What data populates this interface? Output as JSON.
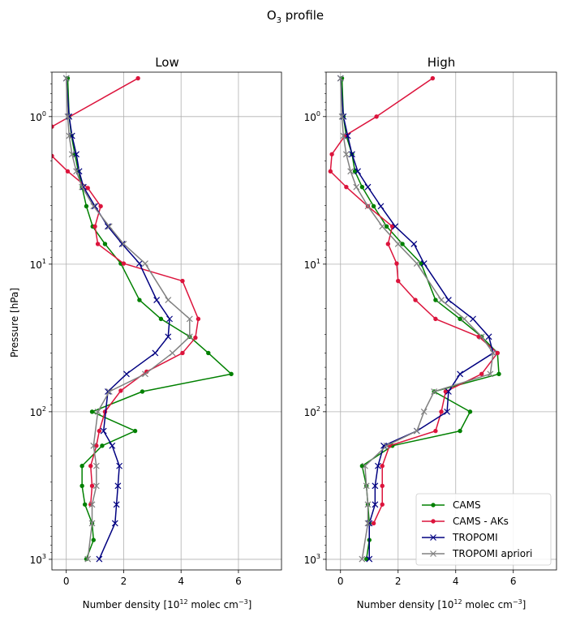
{
  "suptitle": "O",
  "suptitle_sub": "3",
  "suptitle_rest": " profile",
  "chart_data": [
    {
      "type": "line",
      "title": "Low",
      "ylabel": "Pressure [hPa]",
      "xlabel_pre": "Number density [10",
      "xlabel_exp1": "12",
      "xlabel_mid": " molec cm",
      "xlabel_exp2": "−3",
      "xlabel_post": "]",
      "xlim": [
        -0.5,
        7.5
      ],
      "ylim": [
        1180,
        0.5
      ],
      "yscale": "log",
      "grid": true,
      "xticks": [
        0,
        2,
        4,
        6
      ],
      "xtick_labels": [
        "0",
        "2",
        "4",
        "6"
      ],
      "yticks": [
        1,
        10,
        100,
        1000
      ],
      "ytick_labels": [
        "10^0",
        "10^1",
        "10^2",
        "10^3"
      ],
      "series": [
        {
          "name": "CAMS",
          "color": "#008000",
          "marker": "dot",
          "x": [
            0.05,
            0.1,
            0.18,
            0.3,
            0.42,
            0.55,
            0.7,
            0.92,
            1.35,
            1.9,
            2.55,
            3.3,
            4.3,
            4.95,
            5.75,
            2.65,
            0.9,
            2.4,
            1.25,
            0.55,
            0.55,
            0.65,
            0.9,
            0.95,
            0.7
          ],
          "y": [
            0.55,
            1.0,
            1.35,
            1.8,
            2.35,
            3.0,
            4.05,
            5.55,
            7.3,
            9.9,
            17.5,
            23.5,
            31.0,
            40.0,
            55.5,
            73.0,
            100.0,
            135.0,
            170.0,
            233.0,
            318.0,
            425.0,
            570.0,
            740.0,
            995.0
          ]
        },
        {
          "name": "CAMS - AKs",
          "color": "#dc143c",
          "marker": "dot",
          "x": [
            2.5,
            -0.5
          ],
          "y": [
            0.55,
            1.17
          ]
        },
        {
          "name": "CAMS - AKs",
          "color": "#dc143c",
          "marker": "dot",
          "x": [
            -0.5,
            0.05,
            0.75,
            1.2,
            1.0,
            1.1,
            2.0,
            4.05,
            4.6,
            4.5,
            4.05,
            2.8,
            1.9,
            1.35,
            1.15,
            1.05,
            0.85,
            0.9,
            0.85
          ],
          "y": [
            1.85,
            2.35,
            3.05,
            4.05,
            5.55,
            7.3,
            9.9,
            13.0,
            23.5,
            31.5,
            40.0,
            53.5,
            72.0,
            100.0,
            135.0,
            170.0,
            233.0,
            318.0,
            425.0
          ]
        },
        {
          "name": "TROPOMI",
          "color": "#000080",
          "marker": "x",
          "x": [
            0.0,
            0.1,
            0.2,
            0.35,
            0.45,
            0.6,
            1.0,
            1.45,
            1.95,
            2.55,
            3.15,
            3.6,
            3.55,
            3.1,
            2.1,
            1.45,
            1.3,
            1.6,
            1.85,
            1.8,
            1.75,
            1.7,
            1.15
          ],
          "y": [
            0.55,
            1.0,
            1.35,
            1.8,
            2.35,
            3.0,
            4.05,
            5.55,
            7.3,
            9.9,
            17.5,
            23.5,
            31.0,
            40.0,
            55.5,
            73.0,
            135.0,
            170.0,
            233.0,
            318.0,
            425.0,
            570.0,
            995.0
          ]
        },
        {
          "name": "TROPOMI apriori",
          "color": "#808080",
          "marker": "x",
          "x": [
            0.0,
            0.05,
            0.1,
            0.2,
            0.35,
            0.55,
            0.95,
            1.5,
            2.0,
            2.75,
            3.55,
            4.3,
            4.3,
            3.7,
            2.75,
            1.5,
            1.1,
            0.95,
            1.05,
            1.05,
            0.9,
            0.9,
            0.75
          ],
          "y": [
            0.55,
            1.0,
            1.35,
            1.8,
            2.35,
            3.0,
            4.05,
            5.55,
            7.3,
            9.9,
            17.5,
            23.5,
            31.0,
            40.0,
            55.5,
            73.0,
            100.0,
            170.0,
            233.0,
            318.0,
            425.0,
            570.0,
            995.0
          ]
        }
      ]
    },
    {
      "type": "line",
      "title": "High",
      "xlabel_pre": "Number density [10",
      "xlabel_exp1": "12",
      "xlabel_mid": " molec cm",
      "xlabel_exp2": "−3",
      "xlabel_post": "]",
      "xlim": [
        -0.5,
        7.5
      ],
      "ylim": [
        1180,
        0.5
      ],
      "yscale": "log",
      "grid": true,
      "xticks": [
        0,
        2,
        4,
        6
      ],
      "xtick_labels": [
        "0",
        "2",
        "4",
        "6"
      ],
      "yticks": [
        1,
        10,
        100,
        1000
      ],
      "ytick_labels": [
        "10^0",
        "10^1",
        "10^2",
        "10^3"
      ],
      "legend": {
        "location": "lower-right",
        "entries": [
          "CAMS",
          "CAMS - AKs",
          "TROPOMI",
          "TROPOMI apriori"
        ],
        "colors": [
          "#008000",
          "#dc143c",
          "#000080",
          "#808080"
        ],
        "markers": [
          "dot",
          "dot",
          "x",
          "x"
        ]
      },
      "series": [
        {
          "name": "CAMS",
          "color": "#008000",
          "marker": "dot",
          "x": [
            0.05,
            0.1,
            0.2,
            0.4,
            0.5,
            0.75,
            1.15,
            1.6,
            2.15,
            2.8,
            3.3,
            4.15,
            4.9,
            5.45,
            5.5,
            3.25,
            4.5,
            4.15,
            1.8,
            0.75,
            0.9,
            0.95,
            1.0,
            1.0,
            0.9
          ],
          "y": [
            0.55,
            1.0,
            1.35,
            1.8,
            2.35,
            3.0,
            4.05,
            5.55,
            7.3,
            9.9,
            17.5,
            23.5,
            31.0,
            40.0,
            55.5,
            73.0,
            100.0,
            135.0,
            170.0,
            233.0,
            318.0,
            425.0,
            570.0,
            740.0,
            995.0
          ]
        },
        {
          "name": "CAMS - AKs",
          "color": "#dc143c",
          "marker": "dot",
          "x": [
            3.2,
            1.25,
            0.15,
            -0.3,
            -0.35,
            0.2,
            0.95,
            1.8,
            1.65,
            1.95,
            2.0,
            2.6,
            3.3,
            4.8,
            5.45,
            4.9,
            3.65,
            3.5,
            3.3,
            1.7,
            1.45,
            1.45,
            1.45,
            1.15
          ],
          "y": [
            0.55,
            1.0,
            1.35,
            1.8,
            2.35,
            3.0,
            4.05,
            5.55,
            7.3,
            9.9,
            13.0,
            17.5,
            23.5,
            31.0,
            40.0,
            55.5,
            73.0,
            100.0,
            135.0,
            170.0,
            233.0,
            318.0,
            425.0,
            570.0
          ]
        },
        {
          "name": "TROPOMI",
          "color": "#000080",
          "marker": "x",
          "x": [
            0.0,
            0.1,
            0.25,
            0.4,
            0.6,
            0.95,
            1.4,
            1.9,
            2.55,
            2.9,
            3.75,
            4.6,
            5.15,
            5.3,
            4.15,
            3.75,
            3.7,
            2.65,
            1.5,
            1.3,
            1.2,
            1.2,
            1.0,
            1.0
          ],
          "y": [
            0.55,
            1.0,
            1.35,
            1.8,
            2.35,
            3.0,
            4.05,
            5.55,
            7.3,
            9.9,
            17.5,
            23.5,
            31.0,
            40.0,
            55.5,
            73.0,
            100.0,
            135.0,
            170.0,
            233.0,
            318.0,
            425.0,
            570.0,
            995.0
          ]
        },
        {
          "name": "TROPOMI apriori",
          "color": "#808080",
          "marker": "x",
          "x": [
            0.0,
            0.05,
            0.1,
            0.2,
            0.35,
            0.55,
            0.95,
            1.45,
            2.0,
            2.65,
            3.5,
            4.3,
            4.9,
            5.3,
            5.2,
            3.25,
            2.9,
            2.65,
            1.6,
            0.85,
            0.9,
            0.95,
            0.95,
            0.75
          ],
          "y": [
            0.55,
            1.0,
            1.35,
            1.8,
            2.35,
            3.0,
            4.05,
            5.55,
            7.3,
            9.9,
            17.5,
            23.5,
            31.0,
            40.0,
            55.5,
            73.0,
            100.0,
            135.0,
            170.0,
            233.0,
            318.0,
            425.0,
            570.0,
            995.0
          ]
        }
      ]
    }
  ]
}
